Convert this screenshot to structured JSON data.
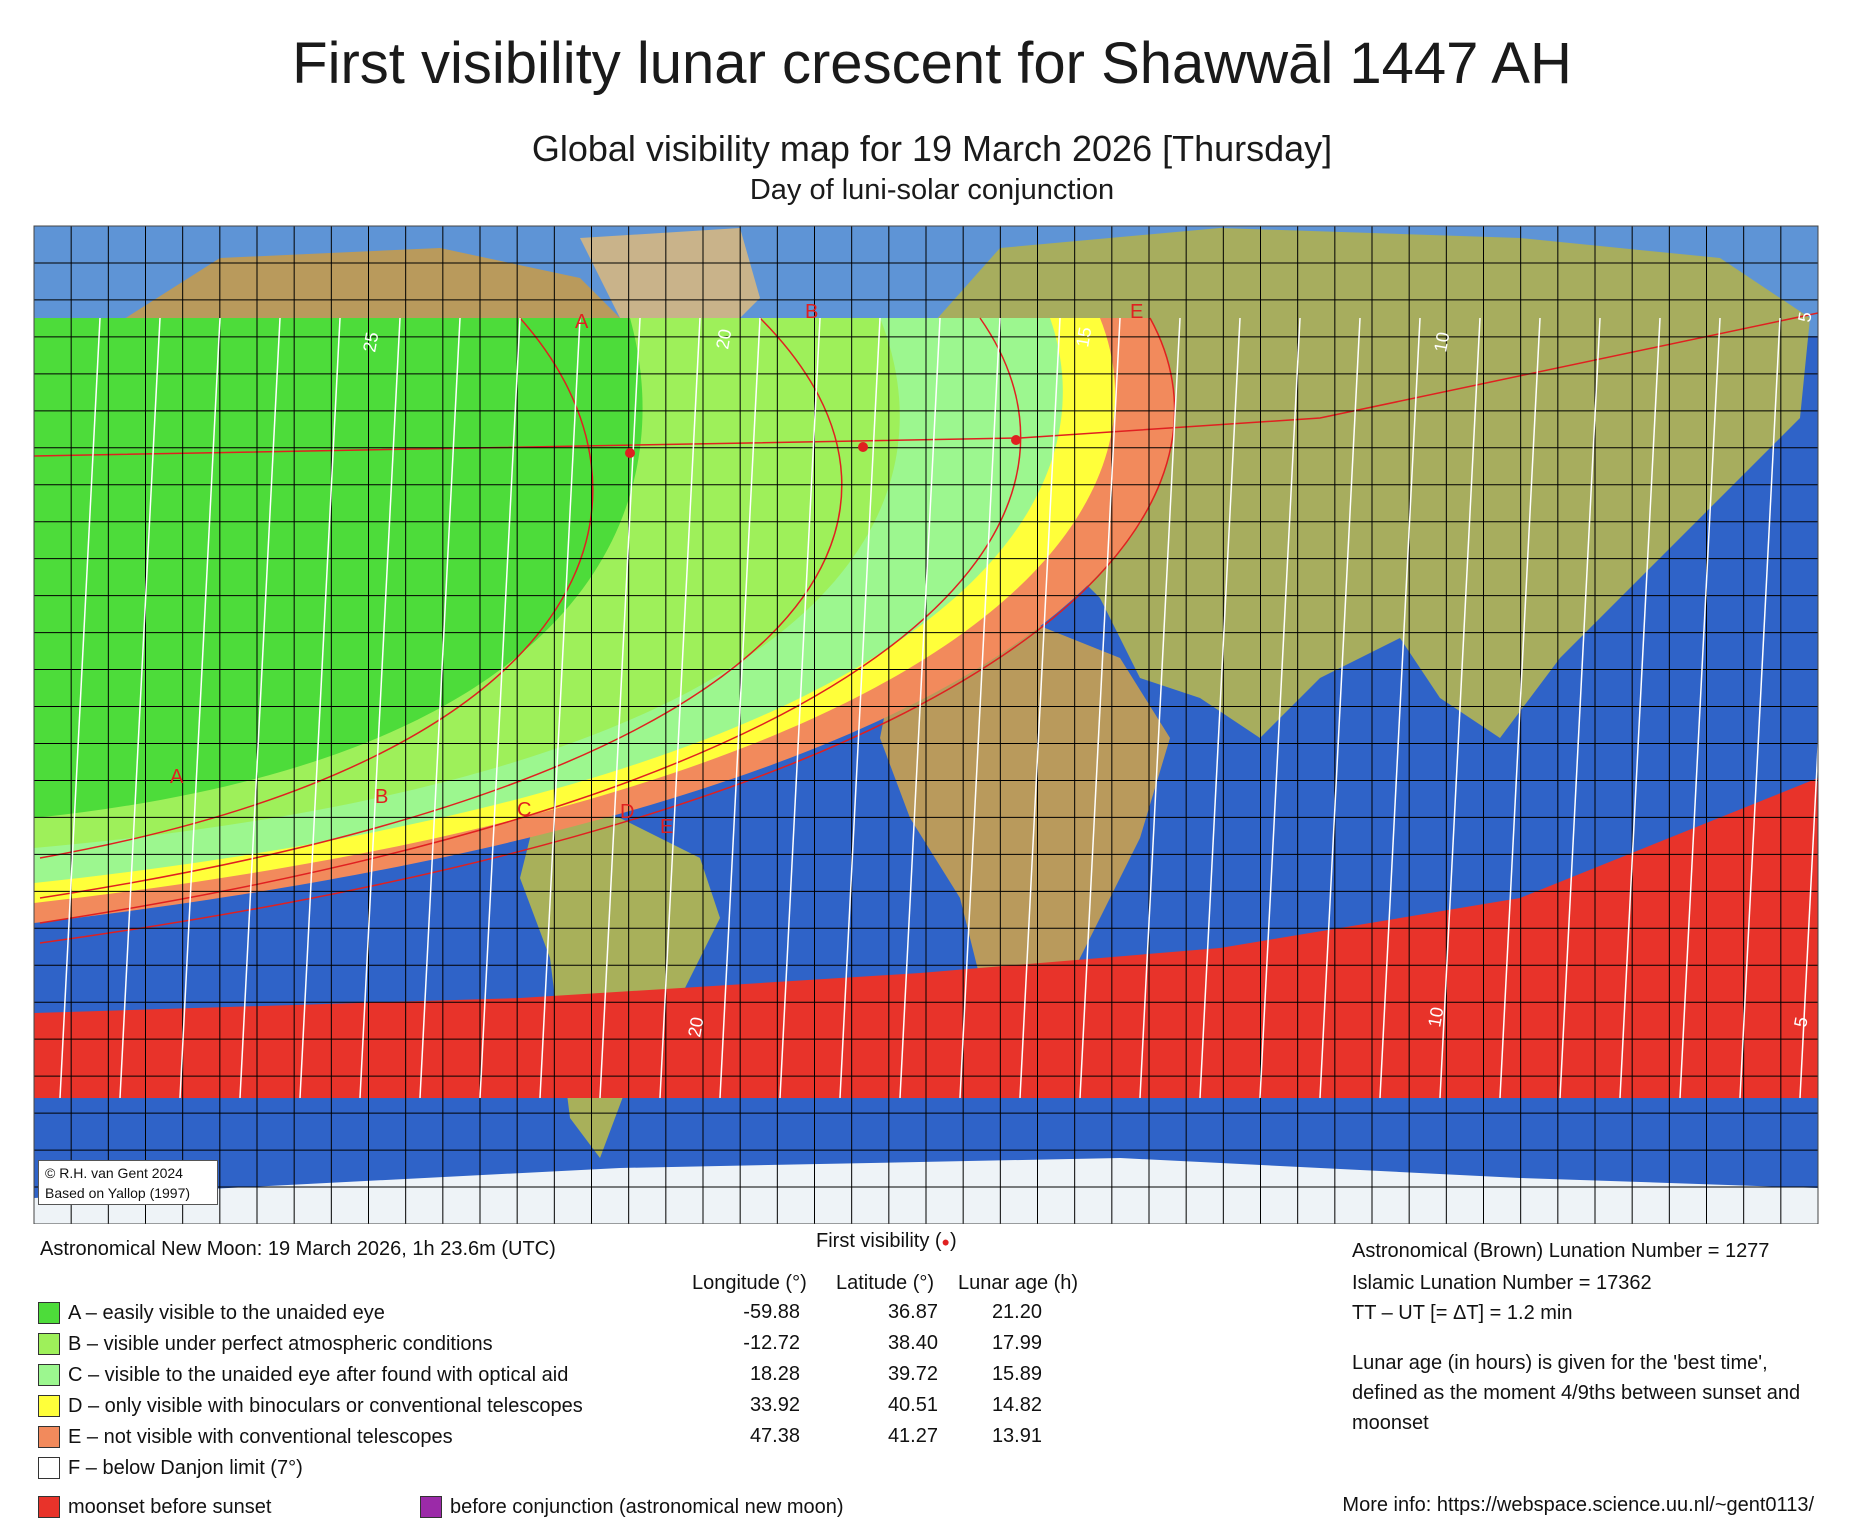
{
  "header": {
    "title": "First visibility lunar crescent for Shawwāl 1447 AH",
    "subtitle": "Global visibility map for 19 March 2026 [Thursday]",
    "subsubtitle": "Day of luni-solar conjunction"
  },
  "map": {
    "credit_line1": "© R.H. van Gent 2024",
    "credit_line2": "Based on Yallop (1997)",
    "zone_labels": [
      "A",
      "B",
      "C",
      "D",
      "E"
    ],
    "lunar_age_labels": [
      "25",
      "20",
      "15",
      "10",
      "5"
    ],
    "colors": {
      "ocean": "#2f63c8",
      "land": "#b99a5c",
      "zone_A": "#4ddc3a",
      "zone_B": "#9ef05a",
      "zone_C": "#9cf78f",
      "zone_D": "#ffff3a",
      "zone_E": "#f28a5c",
      "moonset_before_sunset": "#e8332a",
      "before_conjunction": "#9b2aa8",
      "curve": "#e02020"
    }
  },
  "footer": {
    "new_moon": "Astronomical New Moon: 19 March 2026, 1h 23.6m (UTC)",
    "first_visibility_label": "First visibility (",
    "first_visibility_dot": "●",
    "first_visibility_close": ")",
    "columns": {
      "longitude": "Longitude (°)",
      "latitude": "Latitude (°)",
      "lunar_age": "Lunar age (h)"
    },
    "legend": [
      {
        "label": "A – easily visible to the unaided eye",
        "color": "#4ddc3a",
        "longitude": "-59.88",
        "latitude": "36.87",
        "lunar_age": "21.20"
      },
      {
        "label": "B – visible under perfect atmospheric conditions",
        "color": "#9ef05a",
        "longitude": "-12.72",
        "latitude": "38.40",
        "lunar_age": "17.99"
      },
      {
        "label": "C – visible to the unaided eye after found with optical aid",
        "color": "#9cf78f",
        "longitude": "18.28",
        "latitude": "39.72",
        "lunar_age": "15.89"
      },
      {
        "label": "D – only visible with binoculars or conventional telescopes",
        "color": "#ffff3a",
        "longitude": "33.92",
        "latitude": "40.51",
        "lunar_age": "14.82"
      },
      {
        "label": "E – not visible with conventional telescopes",
        "color": "#f28a5c",
        "longitude": "47.38",
        "latitude": "41.27",
        "lunar_age": "13.91"
      },
      {
        "label": "F – below Danjon limit (7°)",
        "color": "#ffffff"
      }
    ],
    "moonset_label": "moonset before sunset",
    "conjunction_label": "before conjunction (astronomical new moon)",
    "brown_lunation": "Astronomical (Brown) Lunation Number = 1277",
    "islamic_lunation": "Islamic Lunation Number = 17362",
    "delta_t": "TT – UT [= ΔT] = 1.2 min",
    "note": "Lunar age (in hours) is given for the 'best time', defined as the moment 4/9ths between sunset and moonset",
    "more_info": "More info: https://webspace.science.uu.nl/~gent0113/"
  }
}
